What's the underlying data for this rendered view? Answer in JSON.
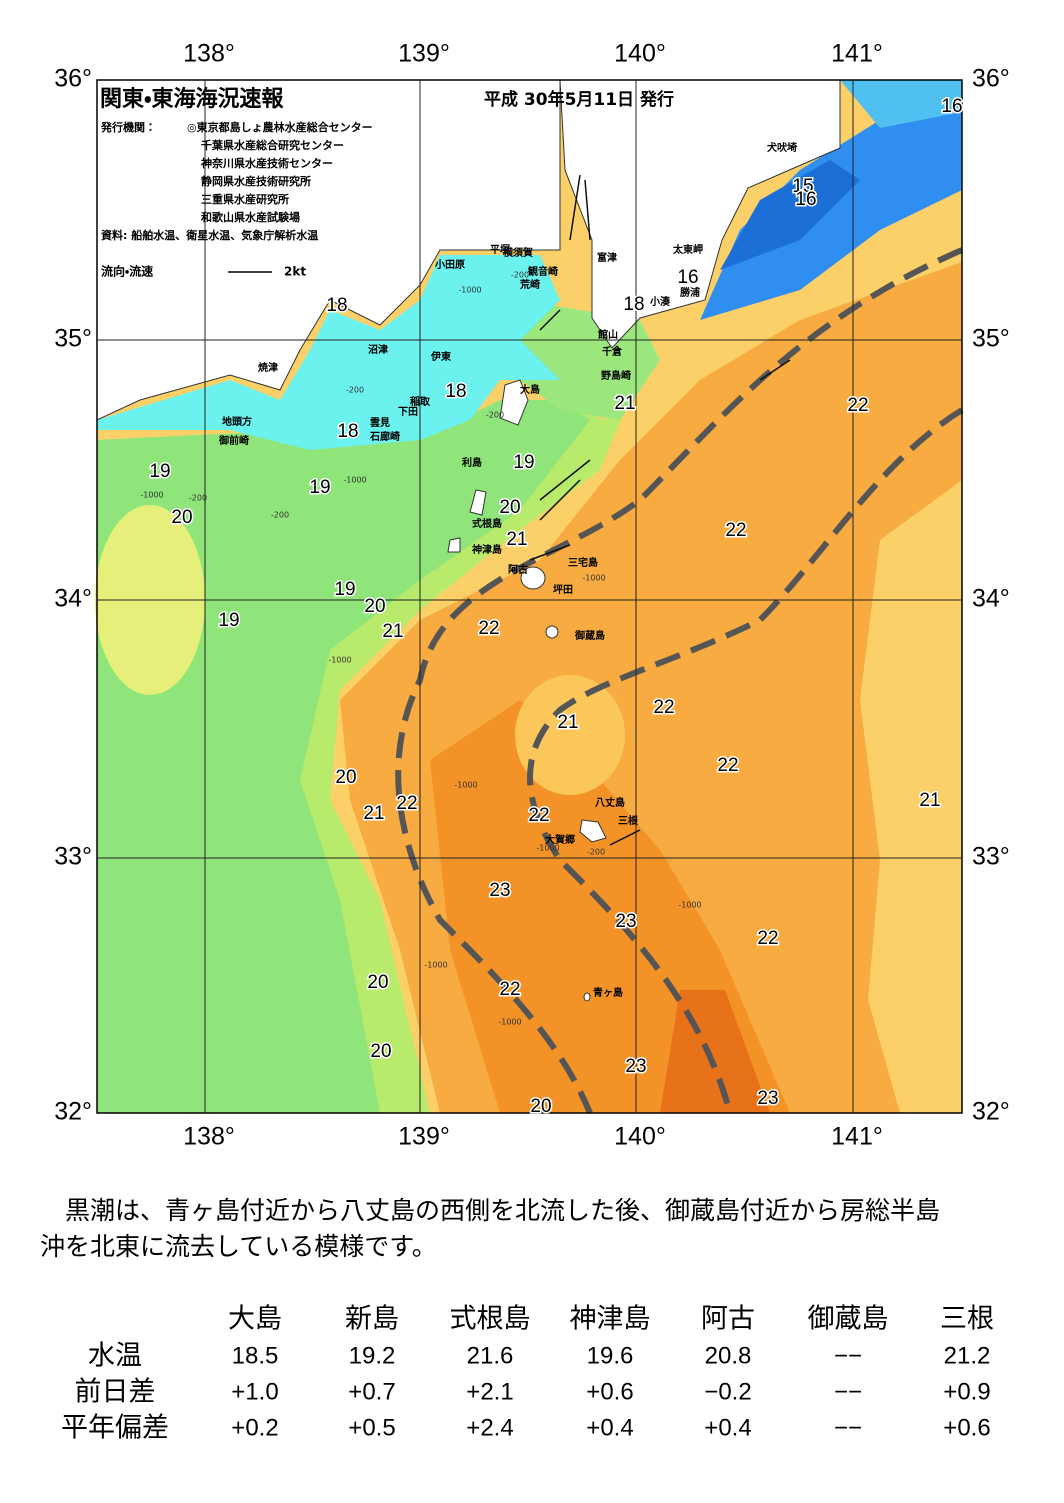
{
  "header": {
    "title": "関東・東海海況速報",
    "date": "平成 30年5月11日 発行",
    "issuers_label": "発行機関：",
    "issuers": [
      "◎東京都島しょ農林水産総合センター",
      "千葉県水産総合研究センター",
      "神奈川県水産技術センター",
      "静岡県水産技術研究所",
      "三重県水産研究所",
      "和歌山県水産試験場"
    ],
    "source": "資料: 船舶水温、衛星水温、気象庁解析水温",
    "legend_label": "流向・流速",
    "legend_speed": "2kt"
  },
  "map": {
    "lon_labels": [
      "138°",
      "139°",
      "140°",
      "141°"
    ],
    "lat_labels": [
      "36°",
      "35°",
      "34°",
      "33°",
      "32°"
    ],
    "places": [
      "犬吠埼",
      "太東岬",
      "勝浦",
      "小湊",
      "富津",
      "横須賀",
      "平塚",
      "観音崎",
      "荒崎",
      "小田原",
      "館山",
      "千倉",
      "野島崎",
      "沼津",
      "伊東",
      "焼津",
      "稲取",
      "下田",
      "雲見",
      "石廊崎",
      "地頭方",
      "御前崎",
      "大島",
      "利島",
      "式根島",
      "神津島",
      "三宅島",
      "阿古",
      "坪田",
      "御蔵島",
      "八丈島",
      "三根",
      "大賀郷",
      "青ヶ島"
    ],
    "contour_labels": [
      "16",
      "15",
      "16",
      "16",
      "18",
      "18",
      "18",
      "18",
      "19",
      "19",
      "19",
      "20",
      "20",
      "21",
      "21",
      "22",
      "22",
      "19",
      "20",
      "21",
      "22",
      "19",
      "22",
      "21",
      "22",
      "21",
      "20",
      "21",
      "22",
      "22",
      "23",
      "23",
      "22",
      "20",
      "22",
      "20",
      "23",
      "23",
      "20"
    ],
    "depth_labels": [
      "-200",
      "-200",
      "-1000",
      "-200",
      "-1000",
      "-200",
      "-1000",
      "-200",
      "-1000",
      "-1000",
      "-1000",
      "-1000",
      "-1000",
      "-1000",
      "-200",
      "-1000"
    ]
  },
  "summary": [
    "　黒潮は、青ヶ島付近から八丈島の西側を北流した後、御蔵島付近から房総半島",
    "沖を北東に流去している模様です。"
  ],
  "table": {
    "columns": [
      "大島",
      "新島",
      "式根島",
      "神津島",
      "阿古",
      "御蔵島",
      "三根"
    ],
    "rows": [
      {
        "label": "水温",
        "values": [
          "18.5",
          "19.2",
          "21.6",
          "19.6",
          "20.8",
          "−−",
          "21.2"
        ]
      },
      {
        "label": "前日差",
        "values": [
          "+1.0",
          "+0.7",
          "+2.1",
          "+0.6",
          "−0.2",
          "−−",
          "+0.9"
        ]
      },
      {
        "label": "平年偏差",
        "values": [
          "+0.2",
          "+0.5",
          "+2.4",
          "+0.4",
          "+0.4",
          "−−",
          "+0.6"
        ]
      }
    ]
  }
}
